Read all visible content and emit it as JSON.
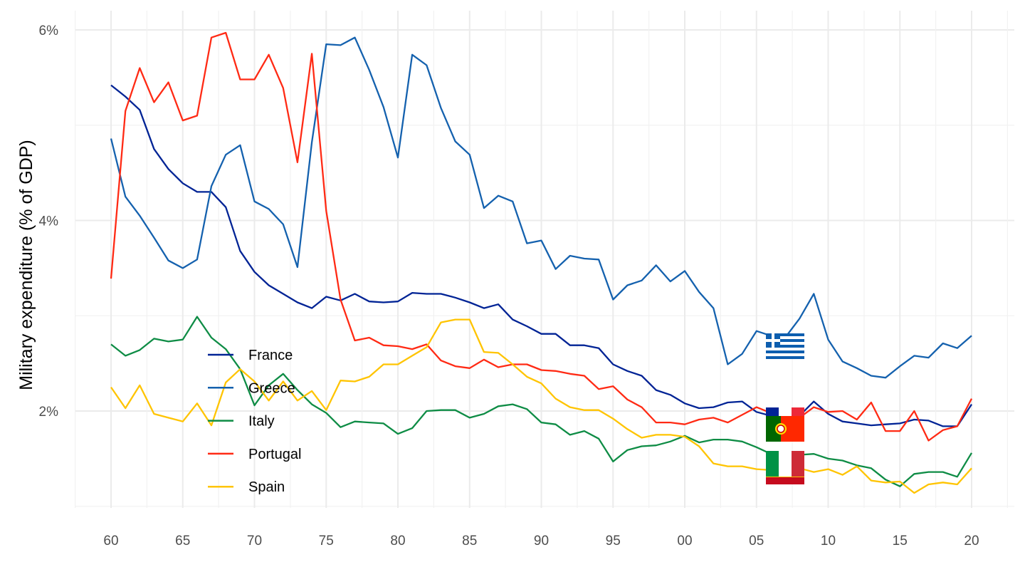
{
  "chart_data": {
    "type": "line",
    "title": "",
    "xlabel": "",
    "ylabel": "Military expenditure (% of GDP)",
    "xlim": [
      1957.5,
      2022.5
    ],
    "ylim": [
      0.9,
      6.2
    ],
    "grid": true,
    "legend_position": "bottom-left-inside",
    "x_ticks": [
      {
        "value": 1960,
        "label": "60"
      },
      {
        "value": 1965,
        "label": "65"
      },
      {
        "value": 1970,
        "label": "70"
      },
      {
        "value": 1975,
        "label": "75"
      },
      {
        "value": 1980,
        "label": "80"
      },
      {
        "value": 1985,
        "label": "85"
      },
      {
        "value": 1990,
        "label": "90"
      },
      {
        "value": 1995,
        "label": "95"
      },
      {
        "value": 2000,
        "label": "00"
      },
      {
        "value": 2005,
        "label": "05"
      },
      {
        "value": 2010,
        "label": "10"
      },
      {
        "value": 2015,
        "label": "15"
      },
      {
        "value": 2020,
        "label": "20"
      }
    ],
    "y_ticks": [
      {
        "value": 2,
        "label": "2%"
      },
      {
        "value": 4,
        "label": "4%"
      },
      {
        "value": 6,
        "label": "6%"
      }
    ],
    "y_minor": [
      1,
      3,
      5
    ],
    "x_start": 1960,
    "series": [
      {
        "name": "France",
        "color": "#002395",
        "flag": "france",
        "values": [
          5.42,
          5.3,
          5.16,
          4.75,
          4.54,
          4.39,
          4.3,
          4.3,
          4.14,
          3.68,
          3.46,
          3.32,
          3.23,
          3.14,
          3.08,
          3.2,
          3.16,
          3.23,
          3.15,
          3.14,
          3.15,
          3.24,
          3.23,
          3.23,
          3.19,
          3.14,
          3.08,
          3.12,
          2.96,
          2.89,
          2.81,
          2.81,
          2.69,
          2.69,
          2.66,
          2.49,
          2.42,
          2.37,
          2.22,
          2.17,
          2.08,
          2.03,
          2.04,
          2.09,
          2.1,
          1.99,
          1.95,
          1.93,
          1.95,
          2.1,
          1.97,
          1.89,
          1.87,
          1.85,
          1.86,
          1.87,
          1.91,
          1.9,
          1.84,
          1.84,
          2.07
        ]
      },
      {
        "name": "Greece",
        "color": "#1461AE",
        "flag": "greece",
        "values": [
          4.86,
          4.25,
          4.05,
          3.82,
          3.58,
          3.5,
          3.59,
          4.36,
          4.69,
          4.79,
          4.2,
          4.12,
          3.96,
          3.51,
          4.82,
          5.85,
          5.84,
          5.92,
          5.58,
          5.19,
          4.66,
          5.74,
          5.63,
          5.18,
          4.83,
          4.69,
          4.13,
          4.26,
          4.2,
          3.76,
          3.79,
          3.49,
          3.63,
          3.6,
          3.59,
          3.17,
          3.32,
          3.37,
          3.53,
          3.36,
          3.47,
          3.25,
          3.08,
          2.49,
          2.6,
          2.84,
          2.79,
          2.77,
          2.97,
          3.23,
          2.75,
          2.52,
          2.45,
          2.37,
          2.35,
          2.47,
          2.58,
          2.56,
          2.71,
          2.66,
          2.79
        ]
      },
      {
        "name": "Italy",
        "color": "#0E8C45",
        "flag": "italy",
        "values": [
          2.7,
          2.58,
          2.64,
          2.76,
          2.73,
          2.75,
          2.99,
          2.77,
          2.65,
          2.44,
          2.06,
          2.27,
          2.39,
          2.22,
          2.07,
          1.98,
          1.83,
          1.89,
          1.88,
          1.87,
          1.76,
          1.82,
          2.0,
          2.01,
          2.01,
          1.93,
          1.97,
          2.05,
          2.07,
          2.02,
          1.88,
          1.86,
          1.75,
          1.79,
          1.71,
          1.47,
          1.59,
          1.63,
          1.64,
          1.68,
          1.74,
          1.67,
          1.7,
          1.7,
          1.68,
          1.62,
          1.55,
          1.51,
          1.54,
          1.55,
          1.5,
          1.48,
          1.43,
          1.4,
          1.28,
          1.21,
          1.34,
          1.36,
          1.36,
          1.31,
          1.56
        ]
      },
      {
        "name": "Portugal",
        "color": "#FF2A14",
        "flag": "portugal",
        "values": [
          3.39,
          5.15,
          5.6,
          5.24,
          5.45,
          5.05,
          5.1,
          5.92,
          5.97,
          5.48,
          5.48,
          5.74,
          5.39,
          4.61,
          5.75,
          4.1,
          3.17,
          2.74,
          2.77,
          2.69,
          2.68,
          2.65,
          2.7,
          2.53,
          2.47,
          2.45,
          2.54,
          2.46,
          2.49,
          2.49,
          2.43,
          2.42,
          2.39,
          2.37,
          2.23,
          2.26,
          2.12,
          2.04,
          1.88,
          1.88,
          1.86,
          1.91,
          1.93,
          1.88,
          1.96,
          2.04,
          1.98,
          1.89,
          1.93,
          2.04,
          1.99,
          2.0,
          1.91,
          2.09,
          1.79,
          1.79,
          2.0,
          1.69,
          1.8,
          1.84,
          2.13
        ]
      },
      {
        "name": "Spain",
        "color": "#FFC400",
        "flag": "spain",
        "values": [
          2.25,
          2.03,
          2.27,
          1.97,
          1.93,
          1.89,
          2.08,
          1.85,
          2.3,
          2.44,
          2.31,
          2.11,
          2.31,
          2.11,
          2.21,
          2.01,
          2.32,
          2.31,
          2.36,
          2.49,
          2.49,
          2.58,
          2.67,
          2.93,
          2.96,
          2.96,
          2.62,
          2.61,
          2.49,
          2.36,
          2.29,
          2.13,
          2.04,
          2.01,
          2.01,
          1.92,
          1.81,
          1.72,
          1.75,
          1.75,
          1.73,
          1.63,
          1.45,
          1.42,
          1.42,
          1.39,
          1.38,
          1.36,
          1.4,
          1.36,
          1.39,
          1.33,
          1.42,
          1.27,
          1.25,
          1.26,
          1.14,
          1.23,
          1.25,
          1.23,
          1.4
        ]
      }
    ]
  }
}
